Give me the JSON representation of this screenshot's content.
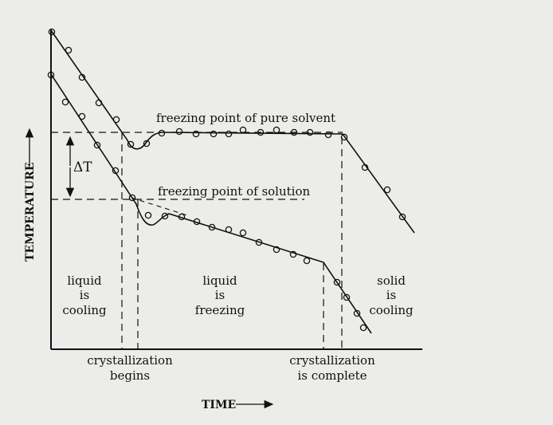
{
  "chart_data": {
    "type": "line",
    "xlabel": "TIME",
    "ylabel": "TEMPERATURE",
    "annotations": {
      "pure_solvent": "freezing point of pure solvent",
      "solution": "freezing point of solution",
      "delta_t": "ΔT",
      "cryst_begins": [
        "crystallization",
        "begins"
      ],
      "cryst_complete": [
        "crystallization",
        "is complete"
      ],
      "phase_cooling": [
        "liquid",
        "is",
        "cooling"
      ],
      "phase_freezing": [
        "liquid",
        "is",
        "freezing"
      ],
      "phase_solid": [
        "solid",
        "is",
        "cooling"
      ]
    }
  },
  "colors": {
    "paper": "#ececea",
    "ink": "#111111"
  }
}
